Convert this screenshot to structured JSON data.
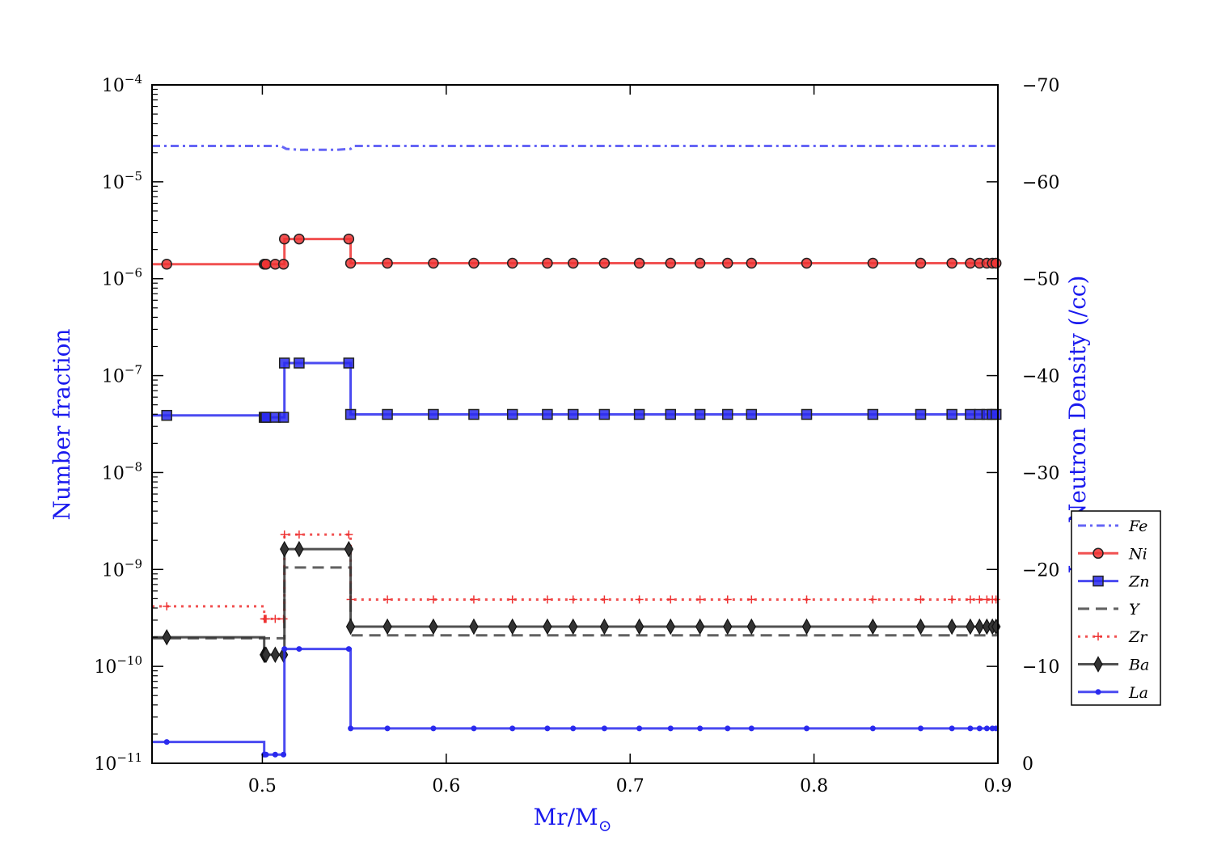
{
  "chart_data": {
    "type": "line",
    "title": "",
    "xlabel": "Mr/M",
    "xlabel_symbol": "⊙",
    "ylabel": "Number fraction",
    "ylabel_right": "Log Neutron Density (/cc)",
    "xlim": [
      0.44,
      0.9
    ],
    "ylim": [
      -11,
      -4
    ],
    "ylim_right": [
      0,
      -70
    ],
    "y_scale": "log",
    "grid": false,
    "legend_position": "right",
    "x_ticks": [
      "0.5",
      "0.6",
      "0.7",
      "0.8",
      "0.9"
    ],
    "y_ticks": [
      {
        "base": "10",
        "exp": "−4"
      },
      {
        "base": "10",
        "exp": "−5"
      },
      {
        "base": "10",
        "exp": "−6"
      },
      {
        "base": "10",
        "exp": "−7"
      },
      {
        "base": "10",
        "exp": "−8"
      },
      {
        "base": "10",
        "exp": "−9"
      },
      {
        "base": "10",
        "exp": "−10"
      },
      {
        "base": "10",
        "exp": "−11"
      }
    ],
    "y_right_ticks": [
      "0",
      "−10",
      "−20",
      "−30",
      "−40",
      "−50",
      "−60",
      "−70"
    ],
    "x_markers": [
      0.448,
      0.501,
      0.5015,
      0.502,
      0.507,
      0.5115,
      0.512,
      0.52,
      0.547,
      0.548,
      0.568,
      0.593,
      0.615,
      0.636,
      0.655,
      0.669,
      0.686,
      0.705,
      0.722,
      0.738,
      0.753,
      0.766,
      0.796,
      0.832,
      0.858,
      0.875,
      0.885,
      0.89,
      0.894,
      0.897,
      0.899
    ],
    "step_x": [
      0.44,
      0.501,
      0.512,
      0.548,
      0.9
    ],
    "series": [
      {
        "name": "Fe",
        "style": "dashdot",
        "marker": "none",
        "color": "#4a4af5",
        "x": [
          0.44,
          0.51,
          0.513,
          0.52,
          0.53,
          0.54,
          0.548,
          0.55,
          0.9
        ],
        "y": [
          -4.63,
          -4.63,
          -4.66,
          -4.67,
          -4.67,
          -4.67,
          -4.66,
          -4.63,
          -4.63
        ]
      },
      {
        "name": "Ni",
        "style": "solid",
        "marker": "circle",
        "color": "#ee3333",
        "levels": [
          -5.85,
          -5.85,
          -5.59,
          -5.84
        ]
      },
      {
        "name": "Zn",
        "style": "solid",
        "marker": "square",
        "color": "#2a2aee",
        "levels": [
          -7.41,
          -7.43,
          -6.87,
          -7.4
        ]
      },
      {
        "name": "Y",
        "style": "dashed",
        "marker": "none",
        "color": "#444444",
        "levels": [
          -9.71,
          -9.71,
          -8.98,
          -9.68
        ]
      },
      {
        "name": "Zr",
        "style": "dotted",
        "marker": "plus",
        "color": "#ee3333",
        "levels": [
          -9.38,
          -9.51,
          -8.64,
          -9.31
        ]
      },
      {
        "name": "Ba",
        "style": "solid",
        "marker": "diamond",
        "color": "#333333",
        "levels": [
          -9.7,
          -9.88,
          -8.79,
          -9.59
        ]
      },
      {
        "name": "La",
        "style": "solid",
        "marker": "dot",
        "color": "#2a2aee",
        "levels": [
          -10.78,
          -10.91,
          -9.82,
          -10.64
        ]
      }
    ]
  }
}
